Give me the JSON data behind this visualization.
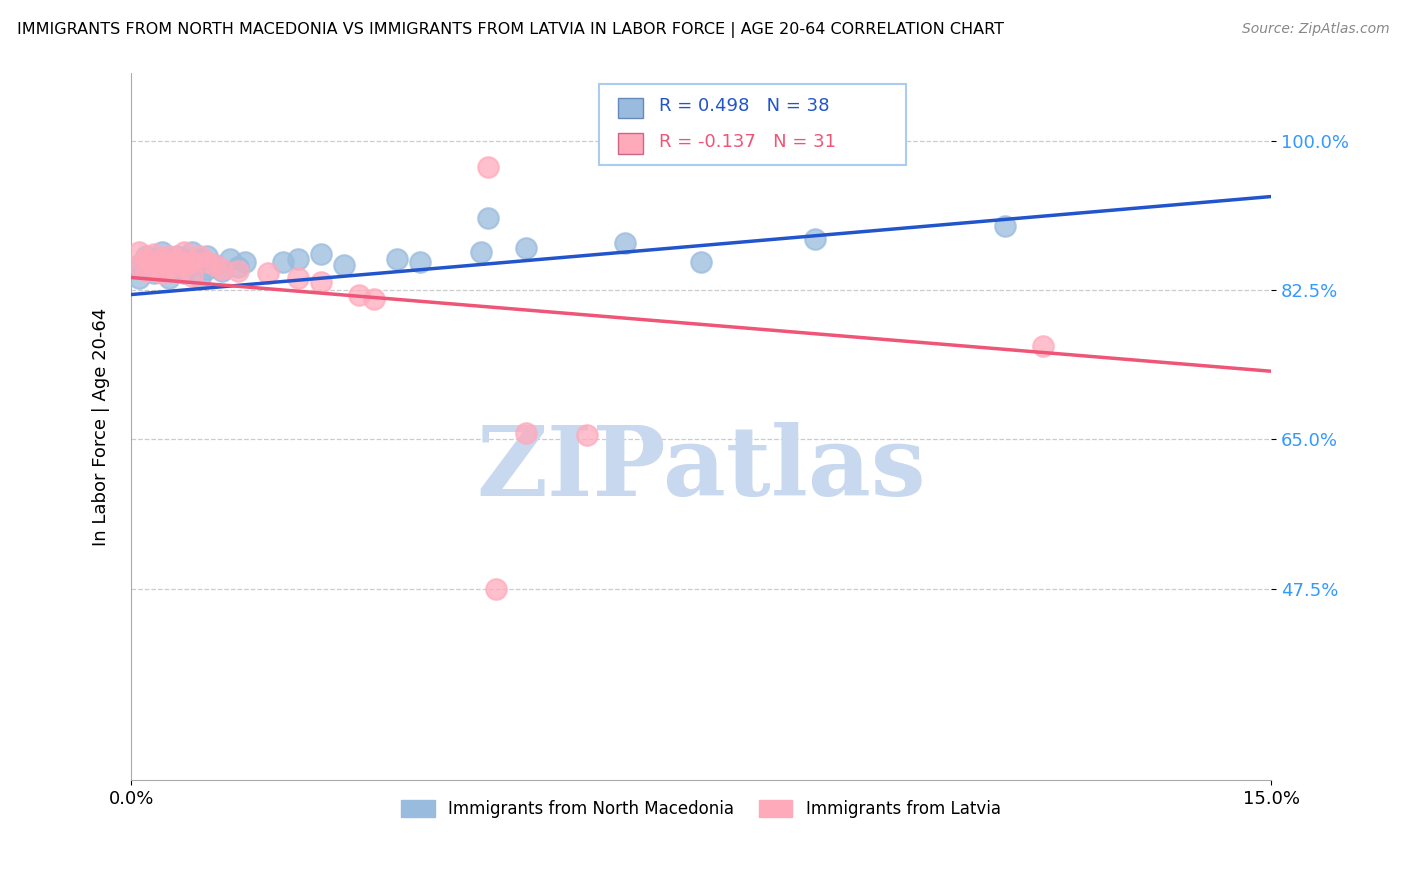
{
  "title": "IMMIGRANTS FROM NORTH MACEDONIA VS IMMIGRANTS FROM LATVIA IN LABOR FORCE | AGE 20-64 CORRELATION CHART",
  "source": "Source: ZipAtlas.com",
  "ylabel": "In Labor Force | Age 20-64",
  "xlim": [
    0.0,
    0.15
  ],
  "ylim": [
    0.25,
    1.08
  ],
  "x_ticks": [
    0.0,
    0.15
  ],
  "x_tick_labels": [
    "0.0%",
    "15.0%"
  ],
  "y_ticks": [
    0.475,
    0.65,
    0.825,
    1.0
  ],
  "y_tick_labels": [
    "47.5%",
    "65.0%",
    "82.5%",
    "100.0%"
  ],
  "legend1_label": "Immigrants from North Macedonia",
  "legend2_label": "Immigrants from Latvia",
  "R1": 0.498,
  "N1": 38,
  "R2": -0.137,
  "N2": 31,
  "blue_color": "#99BBDD",
  "pink_color": "#FFAABB",
  "blue_line_color": "#2255CC",
  "pink_line_color": "#EE5577",
  "watermark": "ZIPatlas",
  "watermark_color": "#C8D8EE",
  "blue_line_x0": 0.0,
  "blue_line_y0": 0.82,
  "blue_line_x1": 0.15,
  "blue_line_y1": 0.935,
  "pink_line_x0": 0.0,
  "pink_line_y0": 0.84,
  "pink_line_x1": 0.15,
  "pink_line_y1": 0.73,
  "nm_x": [
    0.001,
    0.001,
    0.002,
    0.002,
    0.003,
    0.003,
    0.004,
    0.004,
    0.005,
    0.005,
    0.006,
    0.006,
    0.007,
    0.007,
    0.008,
    0.008,
    0.009,
    0.009,
    0.01,
    0.01,
    0.011,
    0.012,
    0.013,
    0.014,
    0.015,
    0.02,
    0.022,
    0.025,
    0.028,
    0.035,
    0.038,
    0.046,
    0.052,
    0.065,
    0.075,
    0.09,
    0.115,
    0.047
  ],
  "nm_y": [
    0.84,
    0.855,
    0.85,
    0.865,
    0.845,
    0.86,
    0.855,
    0.87,
    0.84,
    0.86,
    0.85,
    0.865,
    0.845,
    0.86,
    0.855,
    0.87,
    0.84,
    0.862,
    0.85,
    0.865,
    0.855,
    0.848,
    0.862,
    0.852,
    0.858,
    0.858,
    0.862,
    0.868,
    0.855,
    0.862,
    0.858,
    0.87,
    0.875,
    0.88,
    0.858,
    0.885,
    0.9,
    0.91
  ],
  "lv_x": [
    0.001,
    0.001,
    0.002,
    0.002,
    0.003,
    0.003,
    0.004,
    0.004,
    0.005,
    0.005,
    0.006,
    0.006,
    0.007,
    0.007,
    0.008,
    0.008,
    0.009,
    0.01,
    0.011,
    0.012,
    0.014,
    0.018,
    0.022,
    0.025,
    0.03,
    0.032,
    0.047,
    0.052,
    0.06,
    0.12,
    0.048
  ],
  "lv_y": [
    0.855,
    0.87,
    0.848,
    0.862,
    0.852,
    0.868,
    0.845,
    0.862,
    0.85,
    0.865,
    0.848,
    0.862,
    0.855,
    0.87,
    0.842,
    0.858,
    0.865,
    0.858,
    0.855,
    0.85,
    0.848,
    0.845,
    0.84,
    0.835,
    0.82,
    0.815,
    0.97,
    0.658,
    0.655,
    0.76,
    0.475
  ]
}
